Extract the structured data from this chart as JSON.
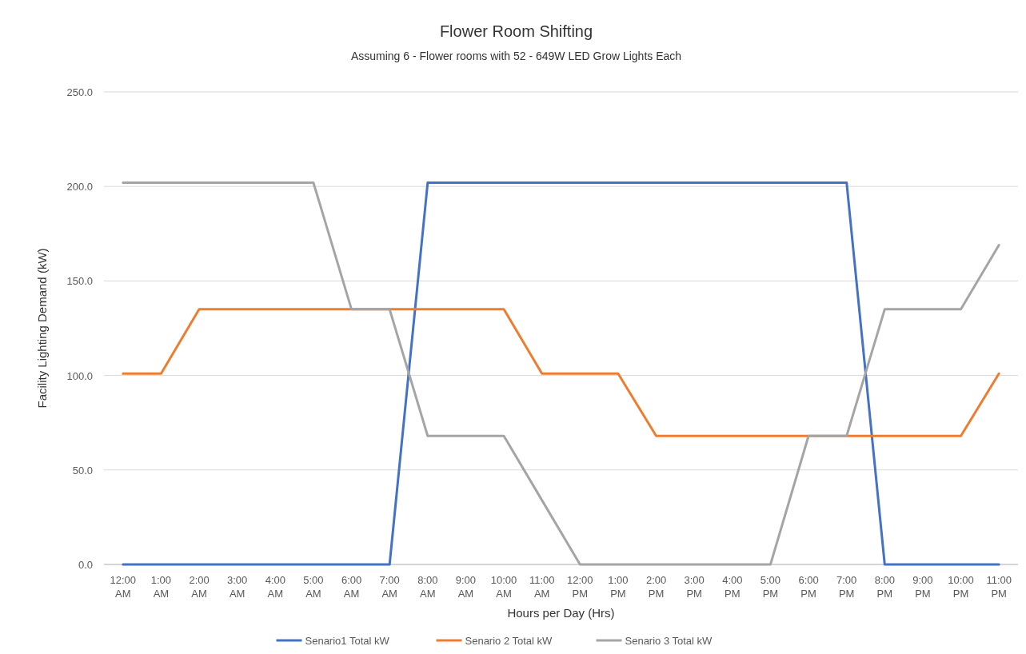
{
  "chart_data": {
    "type": "line",
    "title": "Flower Room Shifting",
    "subtitle": "Assuming 6 - Flower rooms with 52 - 649W  LED Grow Lights Each",
    "xlabel": "Hours per Day (Hrs)",
    "ylabel": "Facility Lighting Demand (kW)",
    "categories": [
      "12:00 AM",
      "1:00 AM",
      "2:00 AM",
      "3:00 AM",
      "4:00 AM",
      "5:00 AM",
      "6:00 AM",
      "7:00 AM",
      "8:00 AM",
      "9:00 AM",
      "10:00 AM",
      "11:00 AM",
      "12:00 PM",
      "1:00 PM",
      "2:00 PM",
      "3:00 PM",
      "4:00 PM",
      "5:00 PM",
      "6:00 PM",
      "7:00 PM",
      "8:00 PM",
      "9:00 PM",
      "10:00 PM",
      "11:00 PM"
    ],
    "series": [
      {
        "name": "Senario1 Total kW",
        "color": "#4472c4",
        "values": [
          0,
          0,
          0,
          0,
          0,
          0,
          0,
          0,
          202,
          202,
          202,
          202,
          202,
          202,
          202,
          202,
          202,
          202,
          202,
          202,
          0,
          0,
          0,
          0
        ]
      },
      {
        "name": "Senario 2 Total kW",
        "color": "#ed7d31",
        "values": [
          101,
          101,
          135,
          135,
          135,
          135,
          135,
          135,
          135,
          135,
          135,
          101,
          101,
          101,
          68,
          68,
          68,
          68,
          68,
          68,
          68,
          68,
          68,
          101
        ]
      },
      {
        "name": "Senario 3 Total kW",
        "color": "#a5a5a5",
        "values": [
          202,
          202,
          202,
          202,
          202,
          202,
          135,
          135,
          68,
          68,
          68,
          34,
          0,
          0,
          0,
          0,
          0,
          0,
          68,
          68,
          135,
          135,
          135,
          169
        ]
      }
    ],
    "ylim": [
      0,
      250
    ],
    "yticks": [
      {
        "value": 0,
        "label": "0.0"
      },
      {
        "value": 50,
        "label": "50.0"
      },
      {
        "value": 100,
        "label": "100.0"
      },
      {
        "value": 150,
        "label": "150.0"
      },
      {
        "value": 200,
        "label": "200.0"
      },
      {
        "value": 250,
        "label": "250.0"
      }
    ],
    "grid": "y",
    "legend": "bottom",
    "marker": "none",
    "line_style": "solid"
  }
}
